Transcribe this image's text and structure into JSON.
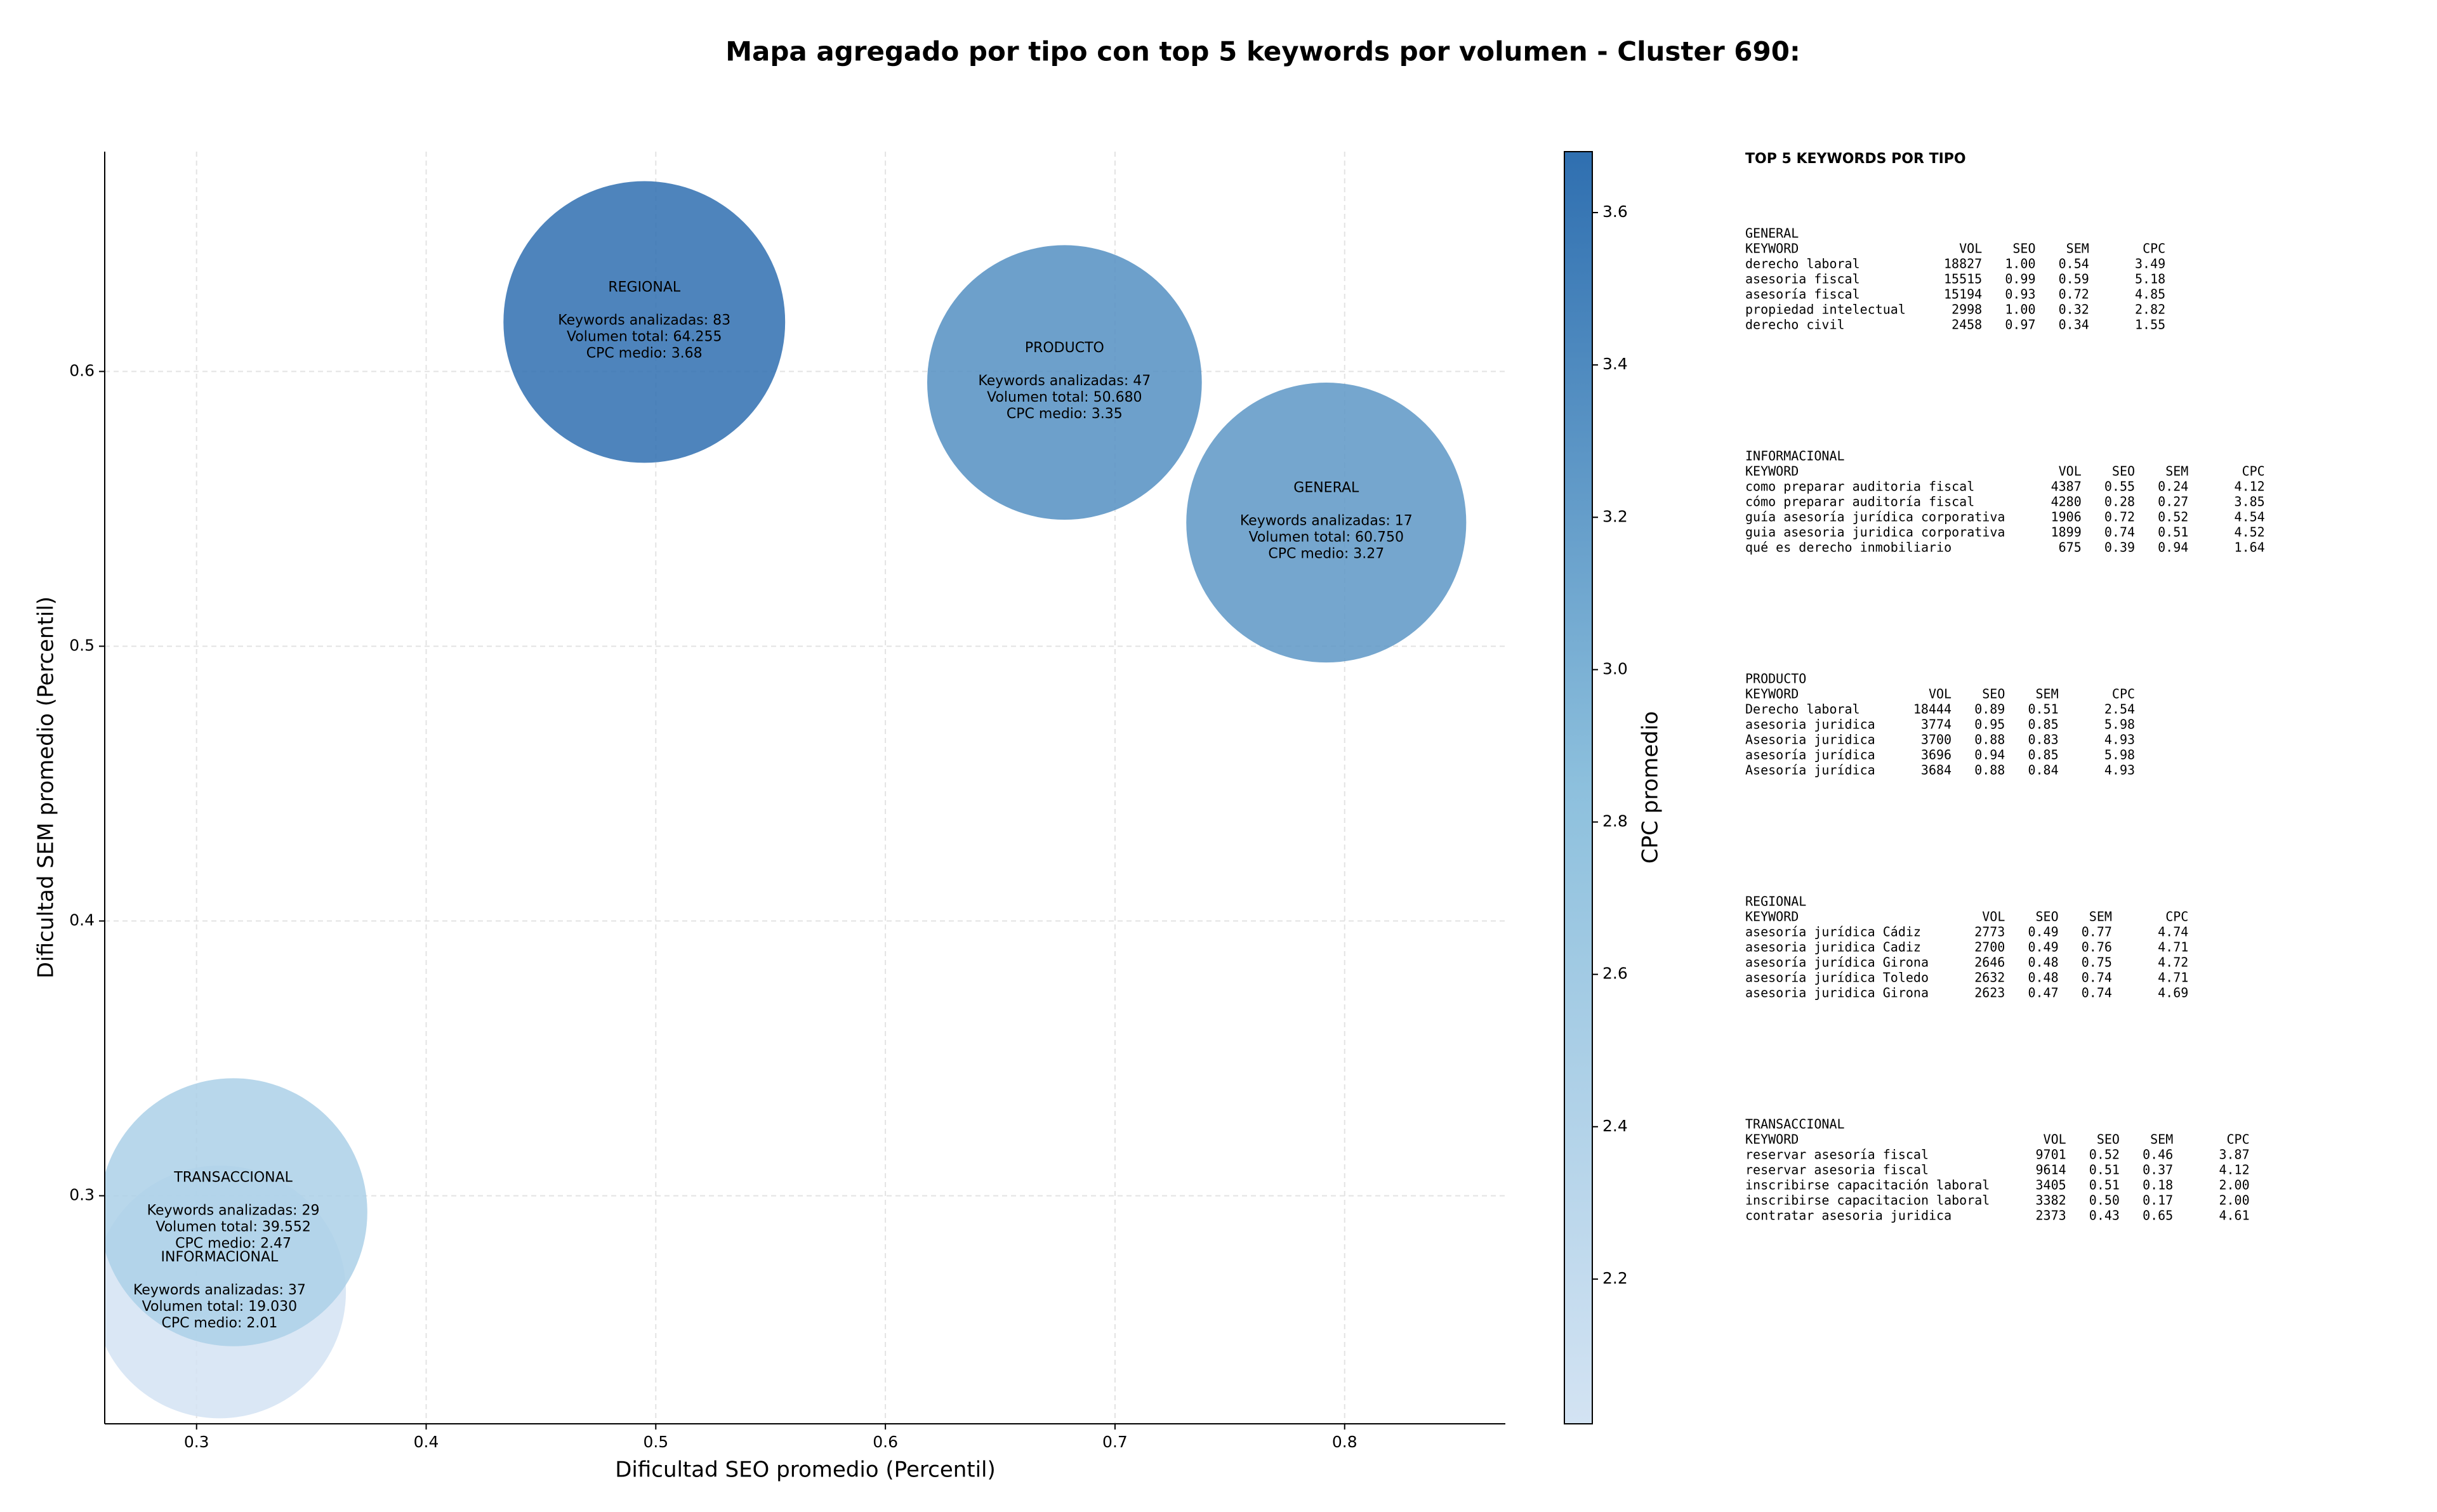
{
  "chart_data": {
    "type": "bubble",
    "title": "Mapa agregado por tipo con top 5 keywords por volumen - Cluster 690:",
    "x_label": "Dificultad SEO promedio (Percentil)",
    "y_label": "Dificultad SEM promedio (Percentil)",
    "categories": [
      "GENERAL",
      "INFORMACIONAL",
      "PRODUCTO",
      "REGIONAL",
      "TRANSACCIONAL"
    ],
    "x": [
      0.792,
      0.31,
      0.678,
      0.495,
      0.316
    ],
    "values": [
      0.545,
      0.265,
      0.596,
      0.618,
      0.294
    ],
    "sizes": [
      60750,
      19030,
      50680,
      64255,
      39552
    ],
    "cpc": [
      3.27,
      2.01,
      3.35,
      3.68,
      2.47
    ],
    "labels": [
      [
        "Keywords analizadas: 17",
        "Volumen total: 60.750",
        "CPC medio: 3.27"
      ],
      [
        "Keywords analizadas: 37",
        "Volumen total: 19.030",
        "CPC medio: 2.01"
      ],
      [
        "Keywords analizadas: 47",
        "Volumen total: 50.680",
        "CPC medio: 3.35"
      ],
      [
        "Keywords analizadas: 83",
        "Volumen total: 64.255",
        "CPC medio: 3.68"
      ],
      [
        "Keywords analizadas: 29",
        "Volumen total: 39.552",
        "CPC medio: 2.47"
      ]
    ],
    "xlim": [
      0.26,
      0.87
    ],
    "ylim": [
      0.217,
      0.68
    ],
    "xticks": [
      0.3,
      0.4,
      0.5,
      0.6,
      0.7,
      0.8
    ],
    "yticks": [
      0.3,
      0.4,
      0.5,
      0.6
    ],
    "grid": true,
    "colorbar": {
      "label": "CPC promedio",
      "lim": [
        2.01,
        3.68
      ],
      "ticks": [
        2.2,
        2.4,
        2.6,
        2.8,
        {
          "value": 3,
          "label": "3.0"
        },
        3.2,
        3.4,
        3.6
      ],
      "colormap": [
        "#d3e3f3",
        "#8dc0dd",
        "#2f6fb0"
      ]
    }
  },
  "panel": {
    "title": "TOP 5 KEYWORDS POR TIPO",
    "sections": [
      {
        "name": "GENERAL",
        "columns": [
          "KEYWORD",
          "VOL",
          "SEO",
          "SEM",
          "CPC"
        ],
        "rows": [
          [
            "derecho laboral",
            "18827",
            "1.00",
            "0.54",
            "3.49"
          ],
          [
            "asesoria fiscal",
            "15515",
            "0.99",
            "0.59",
            "5.18"
          ],
          [
            "asesoría fiscal",
            "15194",
            "0.93",
            "0.72",
            "4.85"
          ],
          [
            "propiedad intelectual",
            "2998",
            "1.00",
            "0.32",
            "2.82"
          ],
          [
            "derecho civil",
            "2458",
            "0.97",
            "0.34",
            "1.55"
          ]
        ]
      },
      {
        "name": "INFORMACIONAL",
        "columns": [
          "KEYWORD",
          "VOL",
          "SEO",
          "SEM",
          "CPC"
        ],
        "rows": [
          [
            "como preparar auditoria fiscal",
            "4387",
            "0.55",
            "0.24",
            "4.12"
          ],
          [
            "cómo preparar auditoría fiscal",
            "4280",
            "0.28",
            "0.27",
            "3.85"
          ],
          [
            "guía asesoría jurídica corporativa",
            "1906",
            "0.72",
            "0.52",
            "4.54"
          ],
          [
            "guia asesoria juridica corporativa",
            "1899",
            "0.74",
            "0.51",
            "4.52"
          ],
          [
            "qué es derecho inmobiliario",
            "675",
            "0.39",
            "0.94",
            "1.64"
          ]
        ]
      },
      {
        "name": "PRODUCTO",
        "columns": [
          "KEYWORD",
          "VOL",
          "SEO",
          "SEM",
          "CPC"
        ],
        "rows": [
          [
            "Derecho laboral",
            "18444",
            "0.89",
            "0.51",
            "2.54"
          ],
          [
            "asesoria juridica",
            "3774",
            "0.95",
            "0.85",
            "5.98"
          ],
          [
            "Asesoria juridica",
            "3700",
            "0.88",
            "0.83",
            "4.93"
          ],
          [
            "asesoría jurídica",
            "3696",
            "0.94",
            "0.85",
            "5.98"
          ],
          [
            "Asesoría jurídica",
            "3684",
            "0.88",
            "0.84",
            "4.93"
          ]
        ]
      },
      {
        "name": "REGIONAL",
        "columns": [
          "KEYWORD",
          "VOL",
          "SEO",
          "SEM",
          "CPC"
        ],
        "rows": [
          [
            "asesoría jurídica Cádiz",
            "2773",
            "0.49",
            "0.77",
            "4.74"
          ],
          [
            "asesoria juridica Cadiz",
            "2700",
            "0.49",
            "0.76",
            "4.71"
          ],
          [
            "asesoría jurídica Girona",
            "2646",
            "0.48",
            "0.75",
            "4.72"
          ],
          [
            "asesoría jurídica Toledo",
            "2632",
            "0.48",
            "0.74",
            "4.71"
          ],
          [
            "asesoria juridica Girona",
            "2623",
            "0.47",
            "0.74",
            "4.69"
          ]
        ]
      },
      {
        "name": "TRANSACCIONAL",
        "columns": [
          "KEYWORD",
          "VOL",
          "SEO",
          "SEM",
          "CPC"
        ],
        "rows": [
          [
            "reservar asesoría fiscal",
            "9701",
            "0.52",
            "0.46",
            "3.87"
          ],
          [
            "reservar asesoria fiscal",
            "9614",
            "0.51",
            "0.37",
            "4.12"
          ],
          [
            "inscribirse capacitación laboral",
            "3405",
            "0.51",
            "0.18",
            "2.00"
          ],
          [
            "inscribirse capacitacion laboral",
            "3382",
            "0.50",
            "0.17",
            "2.00"
          ],
          [
            "contratar asesoria juridica",
            "2373",
            "0.43",
            "0.65",
            "4.61"
          ]
        ]
      }
    ]
  }
}
